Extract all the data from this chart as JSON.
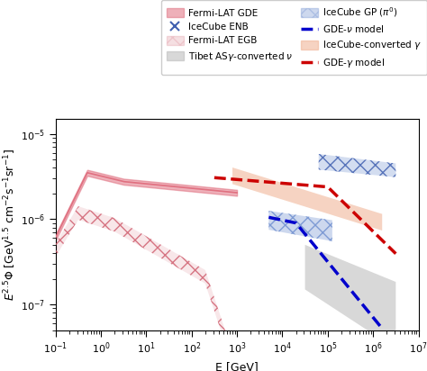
{
  "xlim": [
    0.1,
    10000000.0
  ],
  "ylim": [
    5e-08,
    1.5e-05
  ],
  "xlabel": "E [GeV]",
  "ylabel": "$E^{2.5}\\Phi\\ [\\mathrm{GeV^{1.5}\\ cm^{-2}s^{-1}sr^{-1}}]$",
  "fermi_lat_gde_color": "#e07080",
  "fermi_lat_egb_color": "#d06070",
  "icecube_gp_color": "#7090d0",
  "icecube_converted_gamma_color": "#f0b090",
  "icecube_enb_color": "#4060b0",
  "tibet_color": "#b8b8b8",
  "gde_nu_color": "#0000cc",
  "gde_gamma_color": "#cc0000",
  "legend_fontsize": 7.5,
  "axis_fontsize": 9,
  "tick_fontsize": 8,
  "figsize": [
    4.74,
    4.12
  ],
  "dpi": 100
}
